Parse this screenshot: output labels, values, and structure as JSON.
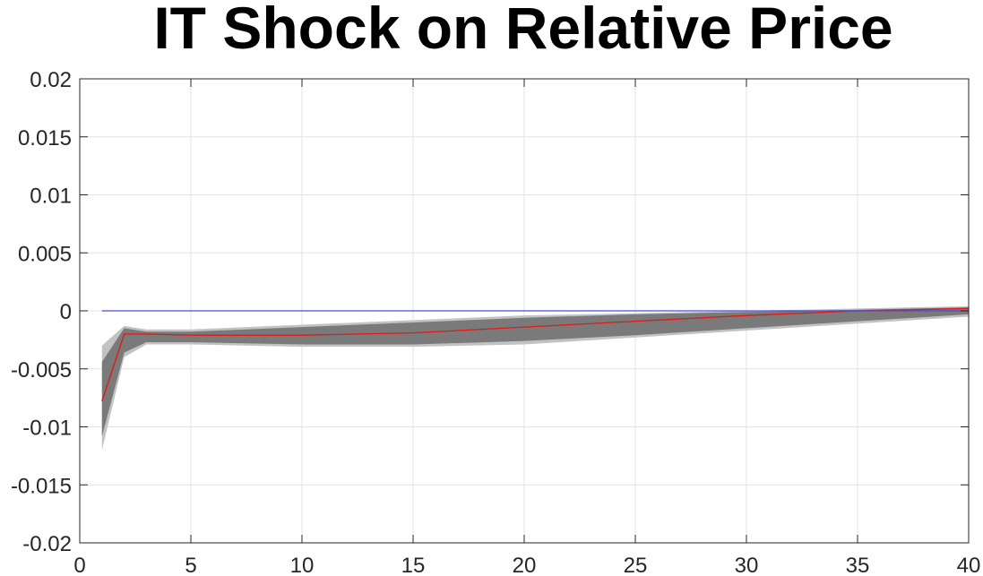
{
  "chart_data": {
    "type": "area",
    "title": "IT Shock on Relative Price",
    "xlabel": "",
    "ylabel": "",
    "xlim": [
      0,
      40
    ],
    "ylim": [
      -0.02,
      0.02
    ],
    "x_ticks": [
      0,
      5,
      10,
      15,
      20,
      25,
      30,
      35,
      40
    ],
    "x_tick_labels": [
      "0",
      "5",
      "10",
      "15",
      "20",
      "25",
      "30",
      "35",
      "40"
    ],
    "y_ticks": [
      0.02,
      0.015,
      0.01,
      0.005,
      0,
      -0.005,
      -0.01,
      -0.015,
      -0.02
    ],
    "y_tick_labels": [
      "0.02",
      "0.015",
      "0.01",
      "0.005",
      "0",
      "-0.005",
      "-0.01",
      "-0.015",
      "-0.02"
    ],
    "grid": true,
    "colors": {
      "outer_band": "#c2c2c2",
      "inner_band": "#7a7a7a",
      "median_line": "#e01818",
      "zero_line": "#4a4ae0",
      "grid": "#e3e3e3",
      "axis": "#262626"
    },
    "series": [
      {
        "x": [
          1,
          2,
          3,
          5,
          10,
          15,
          20,
          25,
          30,
          35,
          40
        ],
        "values": [
          -0.0078,
          -0.002,
          -0.002,
          -0.0021,
          -0.0021,
          -0.0019,
          -0.0014,
          -0.0009,
          -0.0004,
          0.0,
          0.0002
        ]
      },
      {
        "x": [
          1,
          40
        ],
        "values": [
          0,
          0
        ]
      }
    ],
    "bands": [
      {
        "x": [
          1,
          2,
          3,
          5,
          10,
          15,
          20,
          25,
          30,
          35,
          40
        ],
        "upper": [
          -0.003,
          -0.0013,
          -0.0016,
          -0.0016,
          -0.0012,
          -0.0008,
          -0.0004,
          -0.0002,
          0.0,
          0.0002,
          0.0004
        ],
        "lower": [
          -0.012,
          -0.004,
          -0.0029,
          -0.0029,
          -0.0031,
          -0.0031,
          -0.0029,
          -0.0023,
          -0.0017,
          -0.0011,
          -0.0005
        ]
      },
      {
        "x": [
          1,
          2,
          3,
          5,
          10,
          15,
          20,
          25,
          30,
          35,
          40
        ],
        "upper": [
          -0.0044,
          -0.0015,
          -0.0018,
          -0.0018,
          -0.0014,
          -0.001,
          -0.0006,
          -0.0003,
          -0.0001,
          0.0001,
          0.0003
        ],
        "lower": [
          -0.0108,
          -0.0036,
          -0.0027,
          -0.0027,
          -0.0029,
          -0.0029,
          -0.0026,
          -0.0021,
          -0.0015,
          -0.0009,
          -0.0003
        ]
      }
    ]
  }
}
